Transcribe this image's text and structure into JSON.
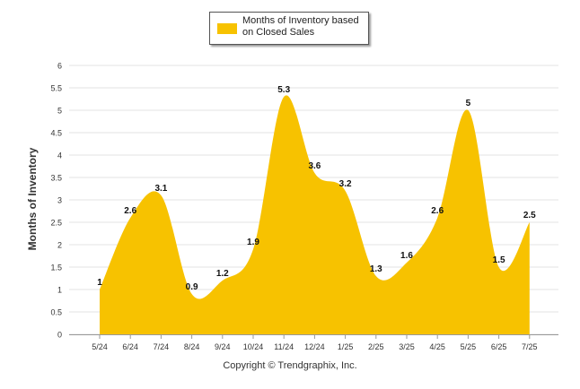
{
  "chart_data": {
    "type": "area",
    "series": [
      {
        "name": "Months of Inventory based on Closed Sales",
        "color": "#f7c200",
        "values": [
          1,
          2.6,
          3.1,
          0.9,
          1.2,
          1.9,
          5.3,
          3.6,
          3.2,
          1.3,
          1.6,
          2.6,
          5,
          1.5,
          2.5
        ],
        "labels": [
          "1",
          "2.6",
          "3.1",
          "0.9",
          "1.2",
          "1.9",
          "5.3",
          "3.6",
          "3.2",
          "1.3",
          "1.6",
          "2.6",
          "5",
          "1.5",
          "2.5"
        ]
      }
    ],
    "categories": [
      "5/24",
      "6/24",
      "7/24",
      "8/24",
      "9/24",
      "10/24",
      "11/24",
      "12/24",
      "1/25",
      "2/25",
      "3/25",
      "4/25",
      "5/25",
      "6/25",
      "7/25"
    ],
    "ylabel": "Months of Inventory",
    "xlabel": "",
    "ylim": [
      0,
      6
    ],
    "yticks": [
      "0",
      "0.5",
      "1",
      "1.5",
      "2",
      "2.5",
      "3",
      "3.5",
      "4",
      "4.5",
      "5",
      "5.5",
      "6"
    ],
    "grid": true,
    "legend_position": "top-center"
  },
  "legend": {
    "label_line1": "Months of Inventory based",
    "label_line2": "on Closed Sales"
  },
  "footer": {
    "copyright": "Copyright © Trendgraphix, Inc."
  }
}
